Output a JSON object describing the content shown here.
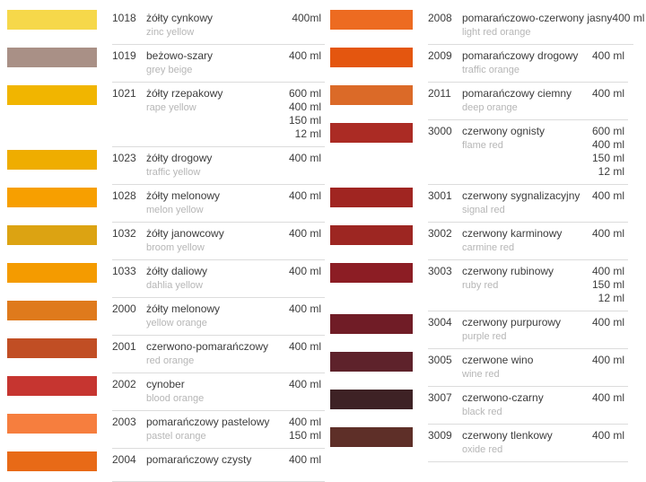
{
  "page": {
    "background": "#ffffff",
    "divider_color": "#dcdcdc"
  },
  "columns": [
    {
      "side": "left",
      "entries": [
        {
          "code": "1018",
          "name_pl": "żółty cynkowy",
          "name_en": "zinc yellow",
          "volumes": [
            "400ml"
          ],
          "color": "#F6D84A"
        },
        {
          "code": "1019",
          "name_pl": "beżowo-szary",
          "name_en": "grey beige",
          "volumes": [
            "400 ml"
          ],
          "color": "#A99086"
        },
        {
          "code": "1021",
          "name_pl": "żółty rzepakowy",
          "name_en": "rape yellow",
          "volumes": [
            "600 ml",
            "400 ml",
            "150 ml",
            "12 ml"
          ],
          "color": "#F1B500"
        },
        {
          "code": "1023",
          "name_pl": "żółty drogowy",
          "name_en": "traffic yellow",
          "volumes": [
            "400 ml"
          ],
          "color": "#EFAD00"
        },
        {
          "code": "1028",
          "name_pl": "żółty melonowy",
          "name_en": "melon yellow",
          "volumes": [
            "400 ml"
          ],
          "color": "#F79F00"
        },
        {
          "code": "1032",
          "name_pl": "żółty janowcowy",
          "name_en": "broom yellow",
          "volumes": [
            "400 ml"
          ],
          "color": "#DCA312"
        },
        {
          "code": "1033",
          "name_pl": "żółty daliowy",
          "name_en": "dahlia yellow",
          "volumes": [
            "400 ml"
          ],
          "color": "#F49B00"
        },
        {
          "code": "2000",
          "name_pl": "żółty melonowy",
          "name_en": "yellow orange",
          "volumes": [
            "400 ml"
          ],
          "color": "#DF7A1C"
        },
        {
          "code": "2001",
          "name_pl": "czerwono-pomarańczowy",
          "name_en": "red orange",
          "volumes": [
            "400 ml"
          ],
          "color": "#C14E24"
        },
        {
          "code": "2002",
          "name_pl": "cynober",
          "name_en": "blood orange",
          "volumes": [
            "400 ml"
          ],
          "color": "#C63530"
        },
        {
          "code": "2003",
          "name_pl": "pomarańczowy pastelowy",
          "name_en": "pastel orange",
          "volumes": [
            "400 ml",
            "150 ml"
          ],
          "color": "#F67E3E"
        },
        {
          "code": "2004",
          "name_pl": "pomarańczowy czysty",
          "name_en": "",
          "volumes": [
            "400 ml"
          ],
          "color": "#E86A17"
        }
      ]
    },
    {
      "side": "right",
      "entries": [
        {
          "code": "2008",
          "name_pl": "pomarańczowo-czerwony jasny",
          "name_en": "light red orange",
          "volumes": [
            "400 ml"
          ],
          "color": "#ED6B21"
        },
        {
          "code": "2009",
          "name_pl": "pomarańczowy drogowy",
          "name_en": "traffic orange",
          "volumes": [
            "400 ml"
          ],
          "color": "#E4560F"
        },
        {
          "code": "2011",
          "name_pl": "pomarańczowy ciemny",
          "name_en": "deep orange",
          "volumes": [
            "400 ml"
          ],
          "color": "#DB6A28"
        },
        {
          "code": "3000",
          "name_pl": "czerwony ognisty",
          "name_en": "flame red",
          "volumes": [
            "600 ml",
            "400 ml",
            "150 ml",
            "12 ml"
          ],
          "color": "#AB2B24"
        },
        {
          "code": "3001",
          "name_pl": "czerwony sygnalizacyjny",
          "name_en": "signal red",
          "volumes": [
            "400 ml"
          ],
          "color": "#A02521"
        },
        {
          "code": "3002",
          "name_pl": "czerwony karminowy",
          "name_en": "carmine red",
          "volumes": [
            "400 ml"
          ],
          "color": "#9D2622"
        },
        {
          "code": "3003",
          "name_pl": "czerwony rubinowy",
          "name_en": "ruby red",
          "volumes": [
            "400 ml",
            "150 ml",
            "12 ml"
          ],
          "color": "#8C1D24"
        },
        {
          "code": "3004",
          "name_pl": "czerwony purpurowy",
          "name_en": "purple red",
          "volumes": [
            "400 ml"
          ],
          "color": "#701C26"
        },
        {
          "code": "3005",
          "name_pl": "czerwone wino",
          "name_en": "wine red",
          "volumes": [
            "400 ml"
          ],
          "color": "#5E222B"
        },
        {
          "code": "3007",
          "name_pl": "czerwono-czarny",
          "name_en": "black red",
          "volumes": [
            "400 ml"
          ],
          "color": "#3E2225"
        },
        {
          "code": "3009",
          "name_pl": "czerwony tlenkowy",
          "name_en": "oxide red",
          "volumes": [
            "400 ml"
          ],
          "color": "#5E2F28"
        }
      ]
    }
  ]
}
